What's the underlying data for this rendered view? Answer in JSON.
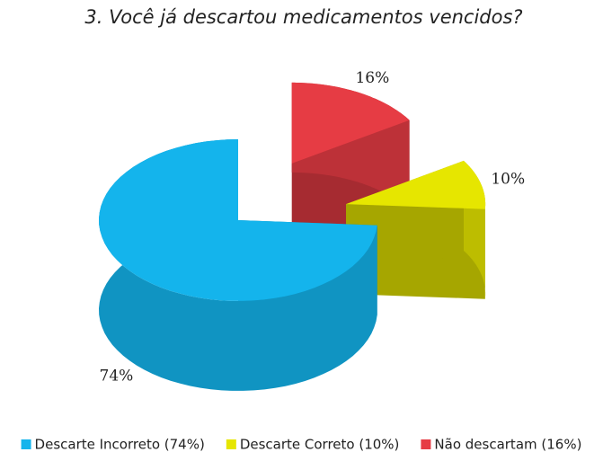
{
  "chart_data": {
    "type": "pie",
    "title": "3. Você já descartou medicamentos vencidos?",
    "categories": [
      "Descarte Incorreto (74%)",
      "Descarte Correto (10%)",
      "Não descartam (16%)"
    ],
    "values": [
      74,
      10,
      16
    ],
    "value_labels": [
      "74%",
      "10%",
      "16%"
    ],
    "colors": [
      "#14b4ec",
      "#e6e600",
      "#e63c44"
    ],
    "legend": "bottom"
  }
}
